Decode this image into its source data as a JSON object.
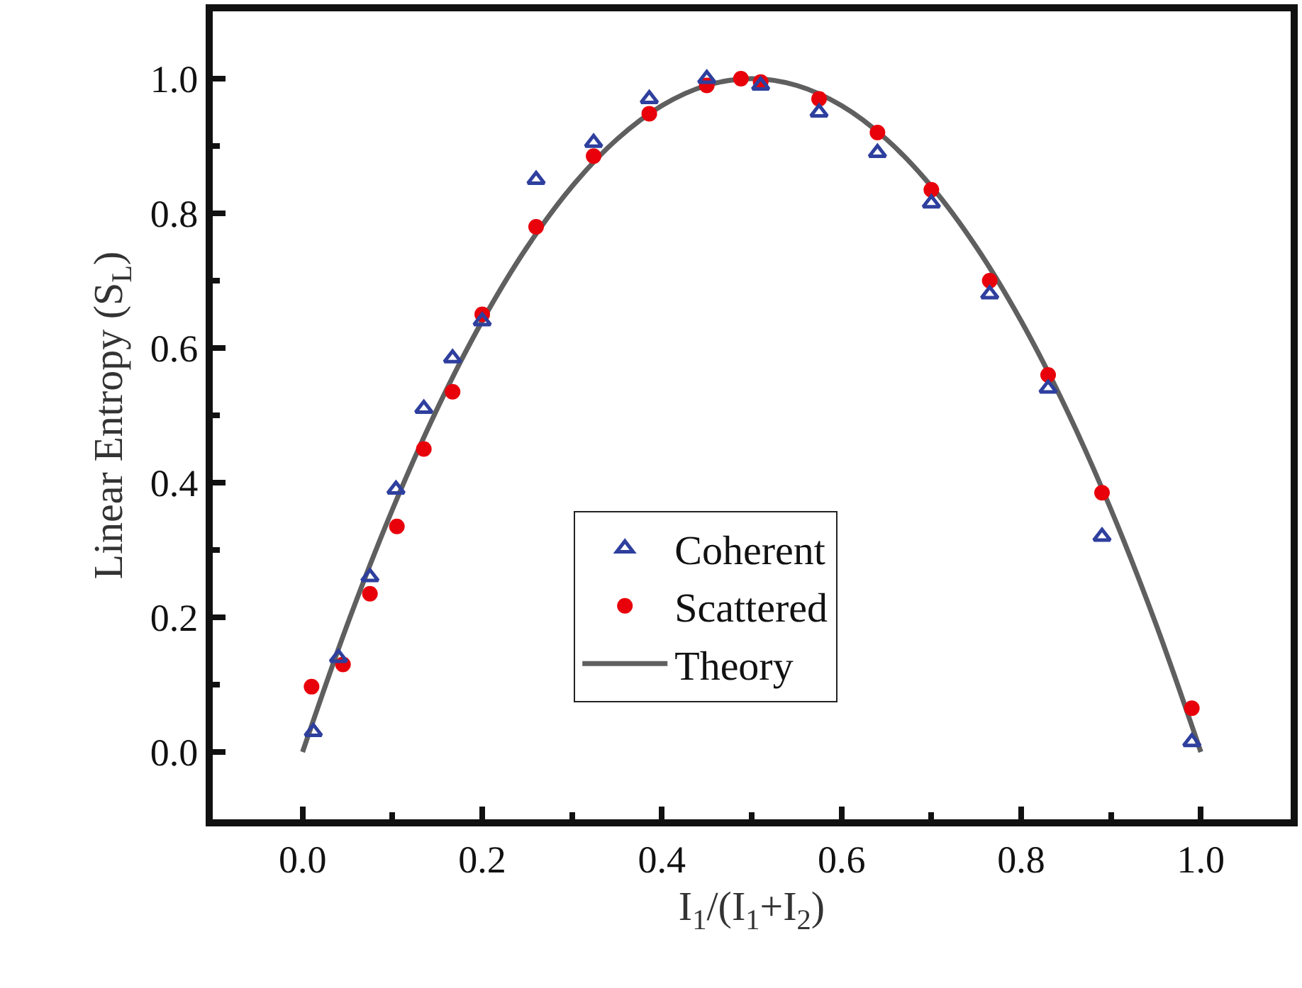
{
  "chart_data": {
    "type": "scatter",
    "xlabel": "I$_{1}$/(I$_{1}$+I$_{2}$)",
    "ylabel": "Linear Entropy (S$_{L}$)",
    "xlim": [
      -0.1,
      1.1
    ],
    "ylim": [
      -0.1,
      1.1
    ],
    "xticks": [
      {
        "value": 0,
        "label": "0.0"
      },
      0.2,
      0.4,
      0.6,
      0.8,
      {
        "value": 1,
        "label": "1.0"
      }
    ],
    "yticks": [
      {
        "value": 0,
        "label": "0.0"
      },
      0.2,
      0.4,
      0.6,
      0.8,
      {
        "value": 1,
        "label": "1.0"
      }
    ],
    "legend": "bottom",
    "series": [
      {
        "name": "Coherent",
        "color": "#2e3f9e",
        "marker": "triangle",
        "x": [
          0.012,
          0.04,
          0.075,
          0.104,
          0.135,
          0.167,
          0.2,
          0.26,
          0.324,
          0.386,
          0.45,
          0.51,
          0.575,
          0.64,
          0.7,
          0.765,
          0.83,
          0.89,
          0.99
        ],
        "values": [
          0.03,
          0.14,
          0.26,
          0.39,
          0.51,
          0.585,
          0.64,
          0.85,
          0.905,
          0.97,
          1.0,
          0.99,
          0.95,
          0.89,
          0.815,
          0.68,
          0.54,
          0.32,
          0.015
        ]
      },
      {
        "name": "Scattered",
        "color": "#e8000b",
        "marker": "circle",
        "x": [
          0.01,
          0.045,
          0.075,
          0.105,
          0.135,
          0.167,
          0.2,
          0.26,
          0.324,
          0.386,
          0.45,
          0.488,
          0.51,
          0.575,
          0.64,
          0.7,
          0.765,
          0.83,
          0.89,
          0.99
        ],
        "values": [
          0.097,
          0.13,
          0.235,
          0.335,
          0.45,
          0.535,
          0.65,
          0.78,
          0.885,
          0.948,
          0.99,
          1.0,
          0.995,
          0.97,
          0.92,
          0.835,
          0.7,
          0.56,
          0.385,
          0.065
        ]
      },
      {
        "name": "Theory",
        "color": "#5f5f5f",
        "type": "line",
        "marker": "none",
        "line_style": "solid",
        "x": [
          0,
          0.05,
          0.1,
          0.15,
          0.2,
          0.25,
          0.3,
          0.35,
          0.4,
          0.45,
          0.5,
          0.55,
          0.6,
          0.65,
          0.7,
          0.75,
          0.8,
          0.85,
          0.9,
          0.95,
          1.0
        ],
        "values": [
          0,
          0.19,
          0.36,
          0.51,
          0.64,
          0.75,
          0.84,
          0.91,
          0.96,
          0.99,
          1.0,
          0.99,
          0.96,
          0.91,
          0.84,
          0.75,
          0.64,
          0.51,
          0.36,
          0.19,
          0
        ]
      }
    ]
  }
}
